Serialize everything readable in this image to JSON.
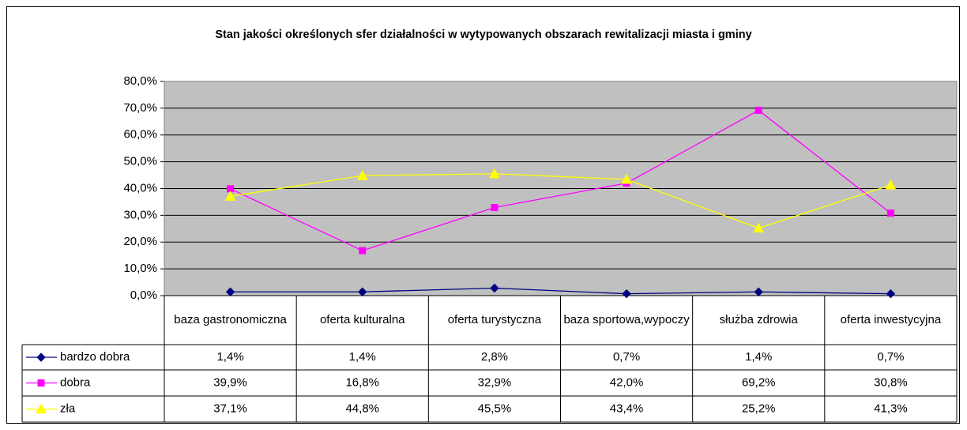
{
  "chart_data": {
    "type": "line",
    "title": "Stan jakości określonych sfer działalności w wytypowanych obszarach rewitalizacji miasta i gminy",
    "categories": [
      "baza gastronomiczna",
      "oferta kulturalna",
      "oferta turystyczna",
      "baza sportowa,wypoczy",
      "służba zdrowia",
      "oferta inwestycyjna"
    ],
    "series": [
      {
        "name": "bardzo dobra",
        "color": "#000080",
        "marker": "diamond",
        "values": [
          1.4,
          1.4,
          2.8,
          0.7,
          1.4,
          0.7
        ],
        "value_labels": [
          "1,4%",
          "1,4%",
          "2,8%",
          "0,7%",
          "1,4%",
          "0,7%"
        ]
      },
      {
        "name": "dobra",
        "color": "#ff00ff",
        "marker": "square",
        "values": [
          39.9,
          16.8,
          32.9,
          42.0,
          69.2,
          30.8
        ],
        "value_labels": [
          "39,9%",
          "16,8%",
          "32,9%",
          "42,0%",
          "69,2%",
          "30,8%"
        ]
      },
      {
        "name": "zła",
        "color": "#ffff00",
        "marker": "triangle",
        "values": [
          37.1,
          44.8,
          45.5,
          43.4,
          25.2,
          41.3
        ],
        "value_labels": [
          "37,1%",
          "44,8%",
          "45,5%",
          "43,4%",
          "25,2%",
          "41,3%"
        ]
      }
    ],
    "ylim": [
      0,
      80
    ],
    "yticks": [
      {
        "value": 0,
        "label": "0,0%"
      },
      {
        "value": 10,
        "label": "10,0%"
      },
      {
        "value": 20,
        "label": "20,0%"
      },
      {
        "value": 30,
        "label": "30,0%"
      },
      {
        "value": 40,
        "label": "40,0%"
      },
      {
        "value": 50,
        "label": "50,0%"
      },
      {
        "value": 60,
        "label": "60,0%"
      },
      {
        "value": 70,
        "label": "70,0%"
      },
      {
        "value": 80,
        "label": "80,0%"
      }
    ],
    "grid": true,
    "plot_background": "#c0c0c0"
  }
}
